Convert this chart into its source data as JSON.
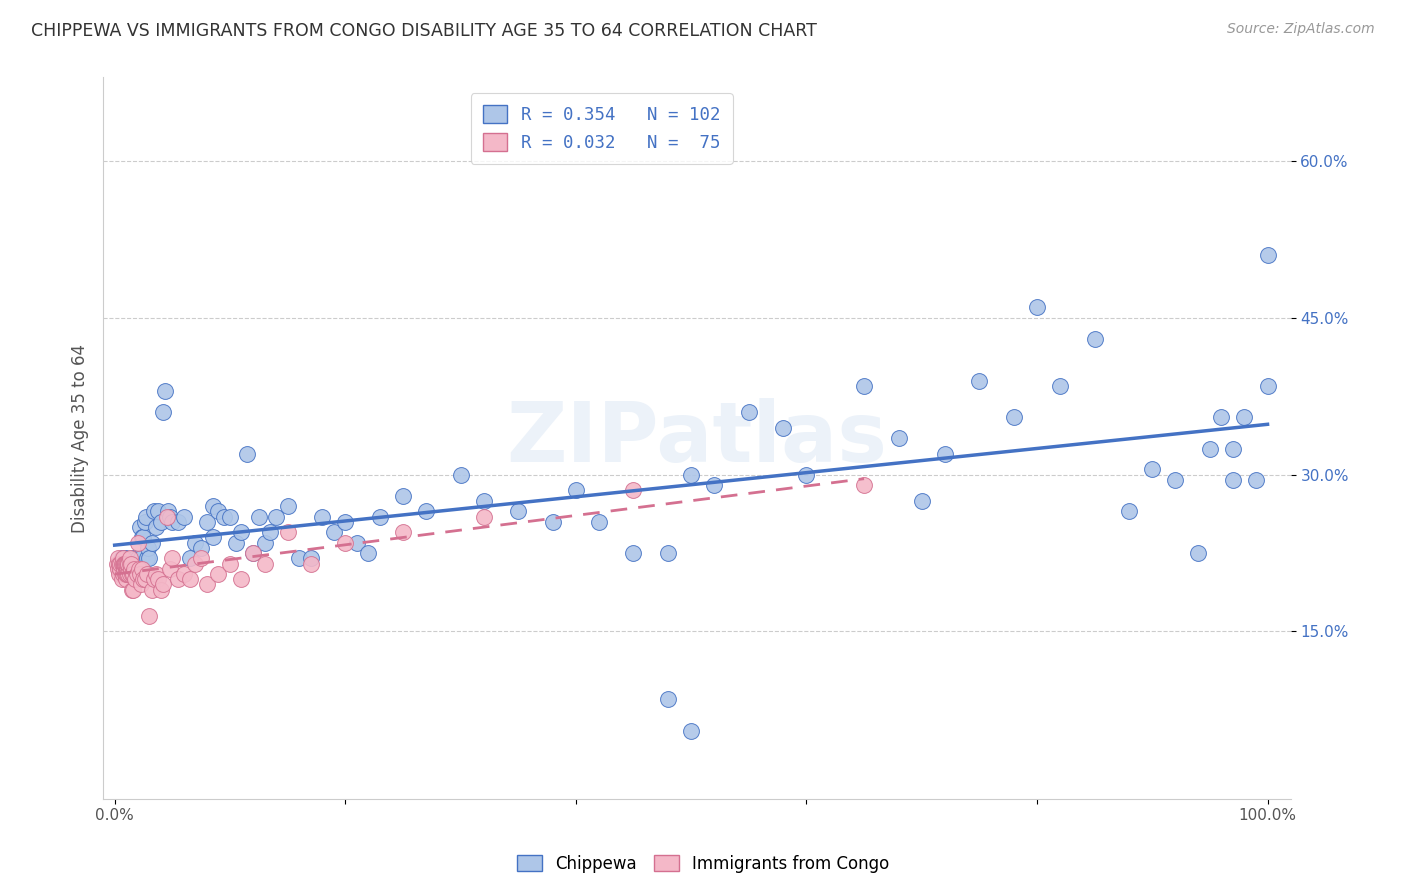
{
  "title": "CHIPPEWA VS IMMIGRANTS FROM CONGO DISABILITY AGE 35 TO 64 CORRELATION CHART",
  "source": "Source: ZipAtlas.com",
  "ylabel": "Disability Age 35 to 64",
  "legend_bottom": [
    "Chippewa",
    "Immigrants from Congo"
  ],
  "chippewa_color": "#aec6e8",
  "chippewa_line_color": "#4472c4",
  "congo_color": "#f4b8c8",
  "congo_line_color": "#d47090",
  "background_color": "#ffffff",
  "grid_color": "#cccccc",
  "watermark": "ZIPatlas",
  "R_chippewa": 0.354,
  "N_chippewa": 102,
  "R_congo": 0.032,
  "N_congo": 75,
  "xlim": [
    -0.01,
    1.02
  ],
  "ylim": [
    -0.01,
    0.68
  ],
  "yticks": [
    0.15,
    0.3,
    0.45,
    0.6
  ],
  "yticklabels": [
    "15.0%",
    "30.0%",
    "45.0%",
    "60.0%"
  ],
  "chippewa_x": [
    0.005,
    0.006,
    0.007,
    0.008,
    0.009,
    0.01,
    0.01,
    0.012,
    0.013,
    0.015,
    0.015,
    0.016,
    0.017,
    0.018,
    0.019,
    0.02,
    0.021,
    0.022,
    0.023,
    0.024,
    0.025,
    0.026,
    0.027,
    0.028,
    0.029,
    0.03,
    0.032,
    0.034,
    0.036,
    0.038,
    0.04,
    0.042,
    0.044,
    0.046,
    0.048,
    0.05,
    0.055,
    0.06,
    0.065,
    0.07,
    0.075,
    0.08,
    0.085,
    0.085,
    0.09,
    0.095,
    0.1,
    0.105,
    0.11,
    0.115,
    0.12,
    0.125,
    0.13,
    0.135,
    0.14,
    0.15,
    0.16,
    0.17,
    0.18,
    0.19,
    0.2,
    0.21,
    0.22,
    0.23,
    0.25,
    0.27,
    0.3,
    0.32,
    0.35,
    0.38,
    0.4,
    0.42,
    0.45,
    0.48,
    0.5,
    0.52,
    0.55,
    0.58,
    0.6,
    0.65,
    0.68,
    0.7,
    0.72,
    0.75,
    0.78,
    0.8,
    0.82,
    0.85,
    0.88,
    0.9,
    0.92,
    0.94,
    0.95,
    0.96,
    0.97,
    0.97,
    0.98,
    0.99,
    1.0,
    1.0,
    0.48,
    0.5
  ],
  "chippewa_y": [
    0.215,
    0.22,
    0.215,
    0.22,
    0.215,
    0.22,
    0.21,
    0.215,
    0.21,
    0.215,
    0.22,
    0.21,
    0.215,
    0.22,
    0.21,
    0.22,
    0.215,
    0.25,
    0.22,
    0.24,
    0.24,
    0.255,
    0.26,
    0.22,
    0.23,
    0.22,
    0.235,
    0.265,
    0.25,
    0.265,
    0.255,
    0.36,
    0.38,
    0.265,
    0.26,
    0.255,
    0.255,
    0.26,
    0.22,
    0.235,
    0.23,
    0.255,
    0.27,
    0.24,
    0.265,
    0.26,
    0.26,
    0.235,
    0.245,
    0.32,
    0.225,
    0.26,
    0.235,
    0.245,
    0.26,
    0.27,
    0.22,
    0.22,
    0.26,
    0.245,
    0.255,
    0.235,
    0.225,
    0.26,
    0.28,
    0.265,
    0.3,
    0.275,
    0.265,
    0.255,
    0.285,
    0.255,
    0.225,
    0.225,
    0.3,
    0.29,
    0.36,
    0.345,
    0.3,
    0.385,
    0.335,
    0.275,
    0.32,
    0.39,
    0.355,
    0.46,
    0.385,
    0.43,
    0.265,
    0.305,
    0.295,
    0.225,
    0.325,
    0.355,
    0.295,
    0.325,
    0.355,
    0.295,
    0.385,
    0.51,
    0.085,
    0.055
  ],
  "congo_x": [
    0.002,
    0.003,
    0.003,
    0.004,
    0.004,
    0.005,
    0.005,
    0.006,
    0.006,
    0.007,
    0.007,
    0.007,
    0.008,
    0.008,
    0.008,
    0.009,
    0.009,
    0.009,
    0.01,
    0.01,
    0.01,
    0.011,
    0.011,
    0.011,
    0.012,
    0.012,
    0.012,
    0.013,
    0.013,
    0.013,
    0.014,
    0.014,
    0.015,
    0.015,
    0.016,
    0.016,
    0.017,
    0.018,
    0.019,
    0.02,
    0.021,
    0.022,
    0.023,
    0.024,
    0.025,
    0.026,
    0.028,
    0.03,
    0.032,
    0.034,
    0.036,
    0.038,
    0.04,
    0.042,
    0.045,
    0.048,
    0.05,
    0.055,
    0.06,
    0.065,
    0.07,
    0.075,
    0.08,
    0.09,
    0.1,
    0.11,
    0.12,
    0.13,
    0.15,
    0.17,
    0.2,
    0.25,
    0.32,
    0.45,
    0.65
  ],
  "congo_y": [
    0.215,
    0.22,
    0.21,
    0.205,
    0.215,
    0.21,
    0.215,
    0.2,
    0.215,
    0.205,
    0.215,
    0.22,
    0.21,
    0.215,
    0.215,
    0.205,
    0.215,
    0.215,
    0.2,
    0.215,
    0.205,
    0.21,
    0.215,
    0.205,
    0.205,
    0.215,
    0.215,
    0.205,
    0.215,
    0.22,
    0.21,
    0.215,
    0.19,
    0.205,
    0.19,
    0.205,
    0.21,
    0.2,
    0.205,
    0.235,
    0.21,
    0.205,
    0.195,
    0.21,
    0.2,
    0.2,
    0.205,
    0.165,
    0.19,
    0.2,
    0.205,
    0.2,
    0.19,
    0.195,
    0.26,
    0.21,
    0.22,
    0.2,
    0.205,
    0.2,
    0.215,
    0.22,
    0.195,
    0.205,
    0.215,
    0.2,
    0.225,
    0.215,
    0.245,
    0.215,
    0.235,
    0.245,
    0.26,
    0.285,
    0.29
  ]
}
